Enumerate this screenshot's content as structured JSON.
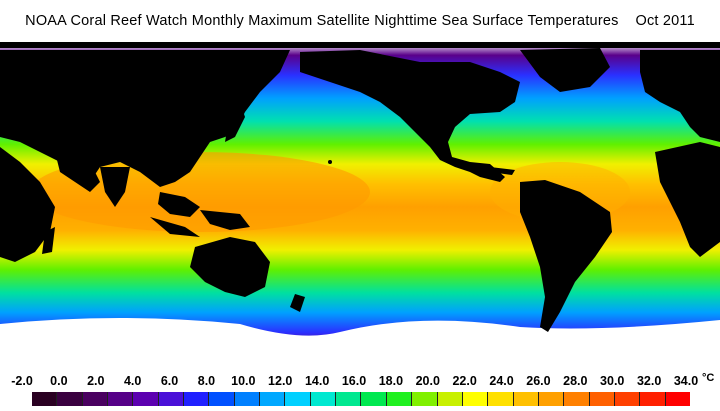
{
  "title": "NOAA Coral Reef Watch Monthly Maximum Satellite Nighttime Sea Surface Temperatures    Oct 2011",
  "legend": {
    "unit": "°C",
    "ticks": [
      "-2.0",
      "0.0",
      "2.0",
      "4.0",
      "6.0",
      "8.0",
      "10.0",
      "12.0",
      "14.0",
      "16.0",
      "18.0",
      "20.0",
      "22.0",
      "24.0",
      "26.0",
      "28.0",
      "30.0",
      "32.0",
      "34.0"
    ],
    "swatch_colors": [
      "#2a0022",
      "#3a0040",
      "#4a0060",
      "#560088",
      "#5c00b0",
      "#4a10d8",
      "#2020ff",
      "#0050ff",
      "#0080ff",
      "#00a8ff",
      "#00d0ff",
      "#00e8d0",
      "#00e890",
      "#00e850",
      "#20f020",
      "#80f000",
      "#c8f000",
      "#ffff00",
      "#ffe000",
      "#ffc000",
      "#ffa000",
      "#ff8000",
      "#ff6000",
      "#ff4000",
      "#ff2000",
      "#ff0000"
    ]
  },
  "colors": {
    "land": "#000000",
    "ice": "#ffffff",
    "polar": "#5a008a",
    "subpolar": "#2040ff",
    "temperate": "#00d0a0",
    "warm": "#80f000",
    "tropical": "#ffd000",
    "hot": "#ff9000"
  }
}
